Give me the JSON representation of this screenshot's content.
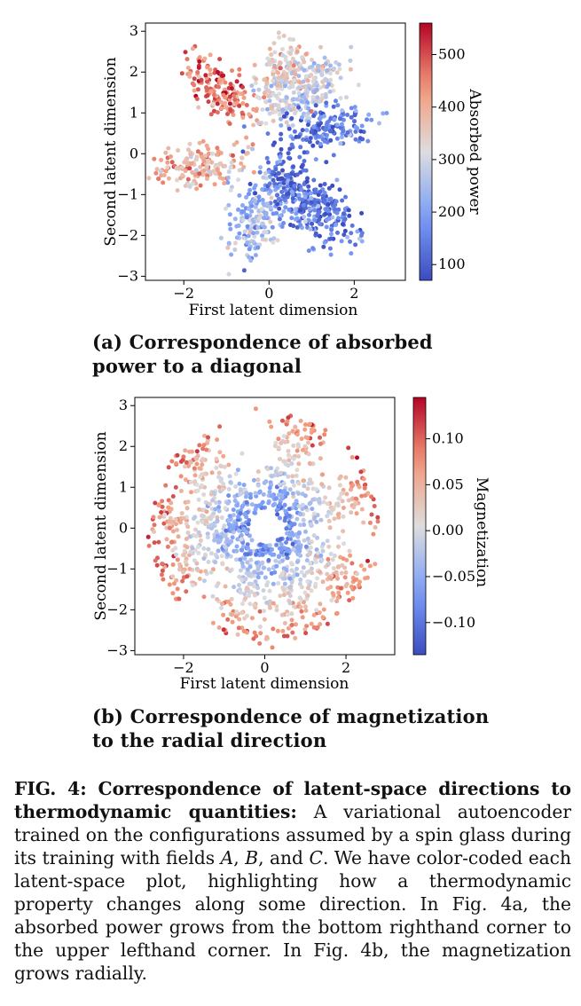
{
  "chart_data": [
    {
      "type": "scatter",
      "xlabel": "First latent dimension",
      "ylabel": "Second latent dimension",
      "xticks": [
        -2,
        0,
        2
      ],
      "yticks": [
        -3,
        -2,
        -1,
        0,
        1,
        2,
        3
      ],
      "xlim": [
        -2.9,
        3.2
      ],
      "ylim": [
        -3.1,
        3.2
      ],
      "colorbar": {
        "label": "Absorbed power",
        "ticks": [
          100,
          200,
          300,
          400,
          500
        ],
        "range": [
          70,
          560
        ],
        "colormap": "coolwarm"
      },
      "clusters": [
        {
          "center": [
            -1.1,
            1.5
          ],
          "direction": [
            -1,
            1
          ],
          "level": 460
        },
        {
          "center": [
            -1.5,
            -0.3
          ],
          "direction": [
            -1,
            -0.1
          ],
          "level": 380
        },
        {
          "center": [
            -0.35,
            -1.6
          ],
          "direction": [
            -0.3,
            -1
          ],
          "level": 230
        },
        {
          "center": [
            0.3,
            1.9
          ],
          "direction": [
            0.3,
            1
          ],
          "level": 330
        },
        {
          "center": [
            1.0,
            1.6
          ],
          "direction": [
            1,
            1
          ],
          "level": 290
        },
        {
          "center": [
            1.3,
            -1.4
          ],
          "direction": [
            1,
            -1
          ],
          "level": 130
        },
        {
          "center": [
            1.4,
            0.6
          ],
          "direction": [
            1,
            0.3
          ],
          "level": 140
        },
        {
          "center": [
            0.5,
            -0.9
          ],
          "direction": [
            0.5,
            -1
          ],
          "level": 140
        }
      ]
    },
    {
      "type": "scatter",
      "xlabel": "First latent dimension",
      "ylabel": "Second latent dimension",
      "xticks": [
        -2,
        0,
        2
      ],
      "yticks": [
        -3,
        -2,
        -1,
        0,
        1,
        2,
        3
      ],
      "xlim": [
        -3.2,
        3.2
      ],
      "ylim": [
        -3.1,
        3.2
      ],
      "colorbar": {
        "label": "Magnetization",
        "ticks": [
          -0.1,
          -0.05,
          0.0,
          0.05,
          0.1
        ],
        "tick_labels": [
          "−0.10",
          "−0.05",
          "0.00",
          "0.05",
          "0.10"
        ],
        "range": [
          -0.135,
          0.145
        ],
        "colormap": "coolwarm"
      },
      "trend": "magnetization grows radially from the origin"
    }
  ],
  "captions": {
    "a_line1": "(a) Correspondence of absorbed",
    "a_line2": "power to a diagonal",
    "b_line1": "(b) Correspondence of magnetization",
    "b_line2": "to the radial direction"
  },
  "main_caption": {
    "label": "FIG. 4: Correspondence of latent-space directions to thermodynamic quantities:",
    "text_1": " A variational autoencoder trained on the configurations assumed by a spin glass during its training with fields ",
    "field_a": "A",
    "sep_1": ", ",
    "field_b": "B",
    "sep_2": ", and ",
    "field_c": "C",
    "text_2": ". We have color-coded each latent-space plot, highlighting how a thermodynamic property changes along some direction. In Fig. 4a, the absorbed power grows from the bottom righthand corner to the upper lefthand corner. In Fig. 4b, the magnetization grows radially."
  }
}
